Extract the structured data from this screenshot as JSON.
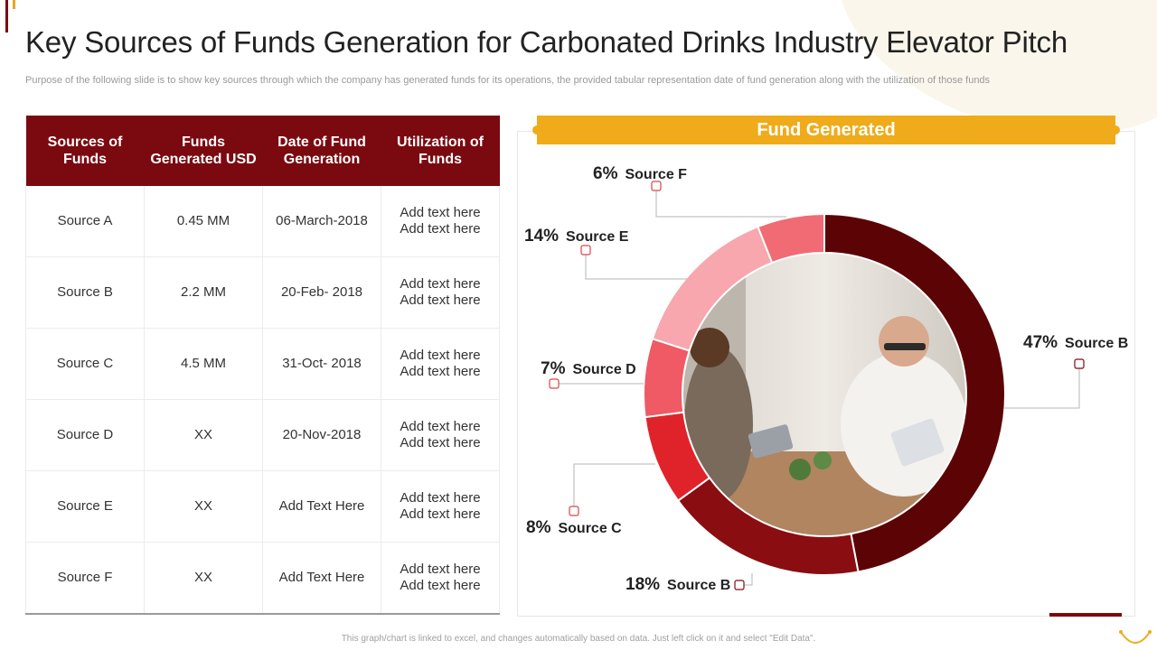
{
  "slide": {
    "title": "Key Sources of Funds Generation for Carbonated Drinks Industry Elevator Pitch",
    "subtitle": "Purpose of the following slide is to show key sources  through which the company has generated funds for its operations, the  provided tabular representation date of fund generation along with the utilization of those funds",
    "footer": "This graph/chart is linked to excel, and changes automatically based on data. Just left click on it and select \"Edit Data\"."
  },
  "table": {
    "headers": [
      "Sources of Funds",
      "Funds Generated USD",
      "Date of Fund Generation",
      "Utilization of Funds"
    ],
    "rows": [
      {
        "source": "Source A",
        "funds": "0.45 MM",
        "date": "06-March-2018",
        "util1": "Add text here",
        "util2": "Add text here"
      },
      {
        "source": "Source B",
        "funds": "2.2 MM",
        "date": "20-Feb- 2018",
        "util1": "Add text here",
        "util2": "Add text here"
      },
      {
        "source": "Source C",
        "funds": "4.5 MM",
        "date": "31-Oct- 2018",
        "util1": "Add text here",
        "util2": "Add text here"
      },
      {
        "source": "Source D",
        "funds": "XX",
        "date": "20-Nov-2018",
        "util1": "Add text here",
        "util2": "Add text here"
      },
      {
        "source": "Source E",
        "funds": "XX",
        "date": "Add Text Here",
        "util1": "Add text here",
        "util2": "Add text here"
      },
      {
        "source": "Source F",
        "funds": "XX",
        "date": "Add Text Here",
        "util1": "Add text here",
        "util2": "Add text here"
      }
    ]
  },
  "chart_data": {
    "type": "pie",
    "title": "Fund Generated",
    "categories": [
      "Source B",
      "Source B",
      "Source C",
      "Source D",
      "Source E",
      "Source F"
    ],
    "values": [
      47,
      18,
      8,
      7,
      14,
      6
    ],
    "value_labels": [
      "47%",
      "18%",
      "8%",
      "7%",
      "14%",
      "6%"
    ],
    "colors": [
      "#5c0306",
      "#8a0d12",
      "#e0232a",
      "#ef5a64",
      "#f7a7ad",
      "#f06b73"
    ],
    "center_image": "meeting-photo"
  },
  "colors": {
    "brand": "#7b0a10",
    "accent": "#efab1a"
  }
}
